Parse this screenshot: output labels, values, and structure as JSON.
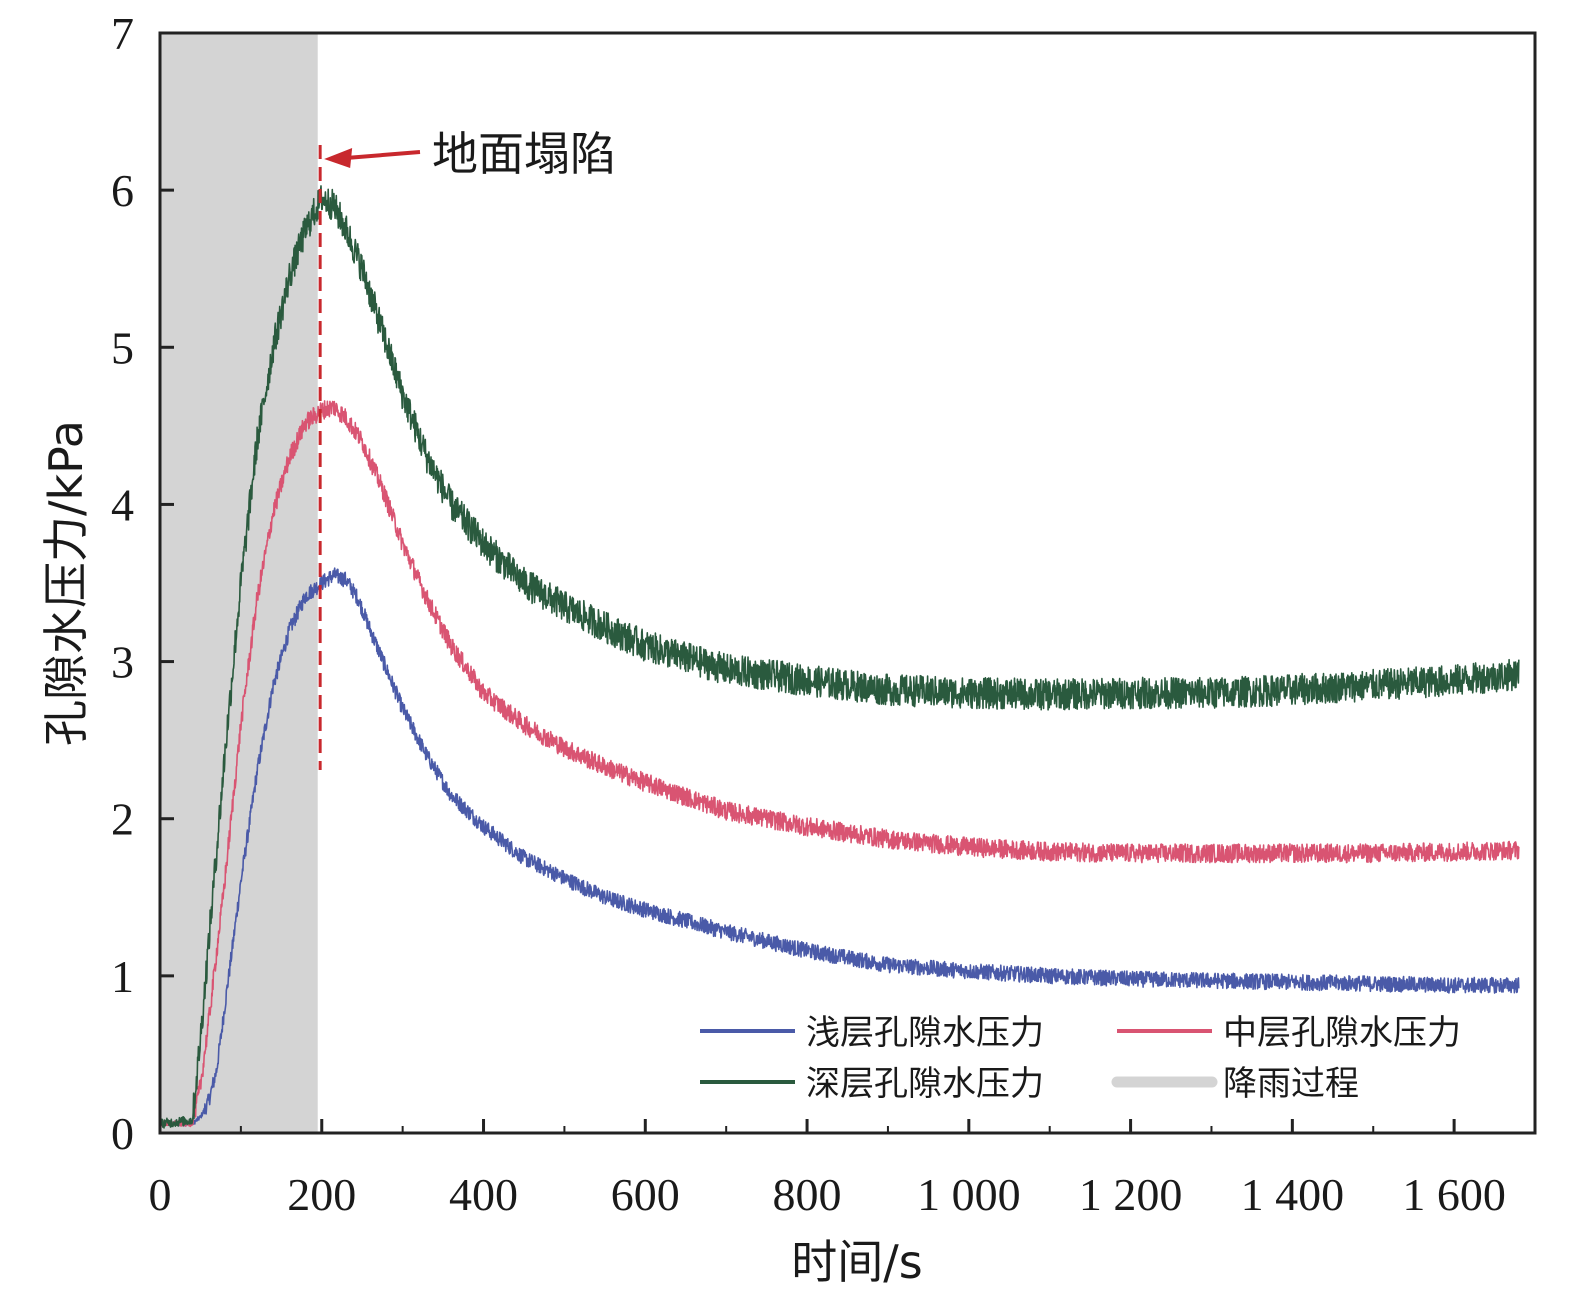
{
  "chart_data": {
    "type": "line",
    "xlabel": "时间/s",
    "ylabel": "孔隙水压力/kPa",
    "xlim": [
      0,
      1700
    ],
    "ylim": [
      0,
      7
    ],
    "x_ticks": [
      0,
      200,
      400,
      600,
      800,
      1000,
      1200,
      1400,
      1600
    ],
    "x_tick_labels": [
      "0",
      "200",
      "400",
      "600",
      "800",
      "1 000",
      "1 200",
      "1 400",
      "1 600"
    ],
    "y_ticks": [
      0,
      1,
      2,
      3,
      4,
      5,
      6,
      7
    ],
    "y_tick_labels": [
      "0",
      "1",
      "2",
      "3",
      "4",
      "5",
      "6",
      "7"
    ],
    "rain_period": {
      "name": "降雨过程",
      "x_start": 0,
      "x_end": 195,
      "color": "#d4d4d4"
    },
    "annotation": {
      "text": "地面塌陷",
      "x": 198,
      "color": "#c8282d"
    },
    "series": [
      {
        "name": "浅层孔隙水压力",
        "color": "#4a5aa8",
        "noise": 0.05,
        "x": [
          0,
          40,
          50,
          60,
          70,
          80,
          100,
          120,
          140,
          160,
          180,
          200,
          215,
          230,
          245,
          260,
          280,
          300,
          330,
          360,
          400,
          450,
          500,
          550,
          600,
          700,
          800,
          900,
          1000,
          1100,
          1200,
          1300,
          1400,
          1500,
          1600,
          1680
        ],
        "y": [
          0.06,
          0.06,
          0.1,
          0.2,
          0.4,
          0.8,
          1.6,
          2.3,
          2.85,
          3.2,
          3.42,
          3.5,
          3.55,
          3.52,
          3.4,
          3.2,
          2.95,
          2.7,
          2.4,
          2.15,
          1.95,
          1.75,
          1.62,
          1.5,
          1.42,
          1.28,
          1.16,
          1.07,
          1.03,
          1.0,
          0.98,
          0.97,
          0.96,
          0.95,
          0.94,
          0.94
        ]
      },
      {
        "name": "中层孔隙水压力",
        "color": "#d95472",
        "noise": 0.06,
        "x": [
          0,
          40,
          50,
          60,
          80,
          100,
          120,
          140,
          160,
          180,
          200,
          215,
          230,
          250,
          275,
          300,
          330,
          360,
          400,
          450,
          500,
          550,
          600,
          700,
          800,
          900,
          1000,
          1100,
          1200,
          1300,
          1400,
          1500,
          1600,
          1680
        ],
        "y": [
          0.06,
          0.06,
          0.3,
          0.7,
          1.6,
          2.6,
          3.4,
          3.95,
          4.3,
          4.52,
          4.6,
          4.62,
          4.55,
          4.4,
          4.1,
          3.75,
          3.4,
          3.1,
          2.8,
          2.6,
          2.45,
          2.33,
          2.23,
          2.05,
          1.95,
          1.87,
          1.82,
          1.79,
          1.78,
          1.78,
          1.78,
          1.78,
          1.79,
          1.8
        ]
      },
      {
        "name": "深层孔隙水压力",
        "color": "#2a5a3e",
        "noise": 0.1,
        "x": [
          0,
          40,
          50,
          60,
          80,
          100,
          120,
          140,
          160,
          180,
          195,
          200,
          215,
          230,
          250,
          275,
          300,
          330,
          360,
          400,
          450,
          500,
          550,
          600,
          700,
          800,
          900,
          1000,
          1100,
          1200,
          1300,
          1400,
          1500,
          1600,
          1680
        ],
        "y": [
          0.06,
          0.08,
          0.6,
          1.2,
          2.4,
          3.5,
          4.4,
          5.0,
          5.45,
          5.75,
          5.9,
          5.95,
          5.9,
          5.75,
          5.5,
          5.1,
          4.7,
          4.3,
          4.0,
          3.75,
          3.5,
          3.35,
          3.22,
          3.1,
          2.95,
          2.88,
          2.82,
          2.8,
          2.79,
          2.8,
          2.8,
          2.82,
          2.85,
          2.88,
          2.92
        ]
      }
    ],
    "legend": {
      "placement": "bottom-right",
      "entries": [
        "浅层孔隙水压力",
        "中层孔隙水压力",
        "深层孔隙水压力",
        "降雨过程"
      ]
    },
    "grid": false
  }
}
